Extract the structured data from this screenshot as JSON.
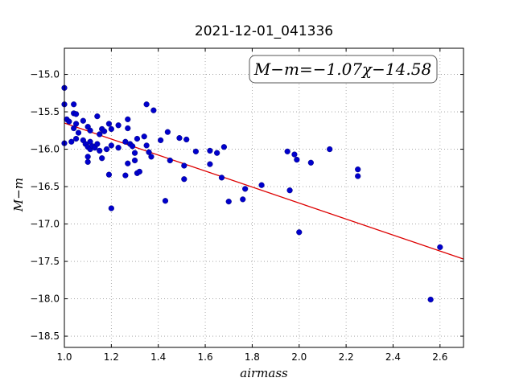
{
  "chart_data": {
    "type": "scatter",
    "title": "2021-12-01_041336",
    "xlabel": "airmass",
    "ylabel": "M−m",
    "annotation": "M−m=−1.07χ−14.58",
    "xlim": [
      1.0,
      2.7
    ],
    "ylim": [
      -18.65,
      -14.65
    ],
    "xticks": [
      "1.0",
      "1.2",
      "1.4",
      "1.6",
      "1.8",
      "2.0",
      "2.2",
      "2.4",
      "2.6"
    ],
    "xtick_values": [
      1.0,
      1.2,
      1.4,
      1.6,
      1.8,
      2.0,
      2.2,
      2.4,
      2.6
    ],
    "yticks": [
      "−15.0",
      "−15.5",
      "−16.0",
      "−16.5",
      "−17.0",
      "−17.5",
      "−18.0",
      "−18.5"
    ],
    "ytick_values": [
      -15.0,
      -15.5,
      -16.0,
      -16.5,
      -17.0,
      -17.5,
      -18.0,
      -18.5
    ],
    "grid": true,
    "point_color": "#0000cc",
    "fit_color": "#dd0000",
    "fit": {
      "slope": -1.07,
      "intercept": -14.58
    },
    "points": [
      [
        1.0,
        -15.18
      ],
      [
        1.0,
        -15.4
      ],
      [
        1.0,
        -15.92
      ],
      [
        1.01,
        -15.6
      ],
      [
        1.02,
        -15.63
      ],
      [
        1.03,
        -15.9
      ],
      [
        1.04,
        -15.4
      ],
      [
        1.04,
        -15.52
      ],
      [
        1.04,
        -15.72
      ],
      [
        1.05,
        -15.53
      ],
      [
        1.05,
        -15.66
      ],
      [
        1.05,
        -15.86
      ],
      [
        1.06,
        -15.78
      ],
      [
        1.08,
        -15.62
      ],
      [
        1.08,
        -15.88
      ],
      [
        1.09,
        -15.93
      ],
      [
        1.1,
        -15.97
      ],
      [
        1.1,
        -16.1
      ],
      [
        1.1,
        -16.17
      ],
      [
        1.1,
        -15.7
      ],
      [
        1.11,
        -15.75
      ],
      [
        1.11,
        -15.9
      ],
      [
        1.11,
        -16.0
      ],
      [
        1.12,
        -15.96
      ],
      [
        1.13,
        -15.98
      ],
      [
        1.14,
        -15.56
      ],
      [
        1.14,
        -15.93
      ],
      [
        1.15,
        -15.8
      ],
      [
        1.15,
        -16.02
      ],
      [
        1.16,
        -15.73
      ],
      [
        1.16,
        -16.12
      ],
      [
        1.17,
        -15.76
      ],
      [
        1.18,
        -16.0
      ],
      [
        1.19,
        -16.34
      ],
      [
        1.19,
        -15.66
      ],
      [
        1.2,
        -15.73
      ],
      [
        1.2,
        -15.95
      ],
      [
        1.2,
        -16.79
      ],
      [
        1.23,
        -15.68
      ],
      [
        1.23,
        -15.98
      ],
      [
        1.26,
        -16.35
      ],
      [
        1.26,
        -15.9
      ],
      [
        1.27,
        -15.6
      ],
      [
        1.27,
        -15.72
      ],
      [
        1.27,
        -16.19
      ],
      [
        1.28,
        -15.93
      ],
      [
        1.29,
        -15.96
      ],
      [
        1.3,
        -16.05
      ],
      [
        1.3,
        -16.15
      ],
      [
        1.31,
        -15.86
      ],
      [
        1.31,
        -16.32
      ],
      [
        1.32,
        -16.3
      ],
      [
        1.34,
        -15.83
      ],
      [
        1.35,
        -15.4
      ],
      [
        1.35,
        -15.95
      ],
      [
        1.36,
        -16.04
      ],
      [
        1.37,
        -16.1
      ],
      [
        1.38,
        -15.48
      ],
      [
        1.41,
        -15.88
      ],
      [
        1.43,
        -16.69
      ],
      [
        1.44,
        -15.77
      ],
      [
        1.45,
        -16.15
      ],
      [
        1.49,
        -15.85
      ],
      [
        1.51,
        -16.4
      ],
      [
        1.51,
        -16.22
      ],
      [
        1.52,
        -15.87
      ],
      [
        1.56,
        -16.03
      ],
      [
        1.62,
        -16.02
      ],
      [
        1.62,
        -16.2
      ],
      [
        1.65,
        -16.05
      ],
      [
        1.67,
        -16.38
      ],
      [
        1.68,
        -15.97
      ],
      [
        1.7,
        -16.7
      ],
      [
        1.76,
        -16.67
      ],
      [
        1.77,
        -16.53
      ],
      [
        1.84,
        -16.48
      ],
      [
        1.95,
        -16.03
      ],
      [
        1.96,
        -16.55
      ],
      [
        1.98,
        -16.07
      ],
      [
        1.99,
        -16.14
      ],
      [
        2.0,
        -17.11
      ],
      [
        2.05,
        -16.18
      ],
      [
        2.13,
        -16.0
      ],
      [
        2.25,
        -16.27
      ],
      [
        2.25,
        -16.36
      ],
      [
        2.56,
        -18.01
      ],
      [
        2.6,
        -17.31
      ]
    ]
  }
}
